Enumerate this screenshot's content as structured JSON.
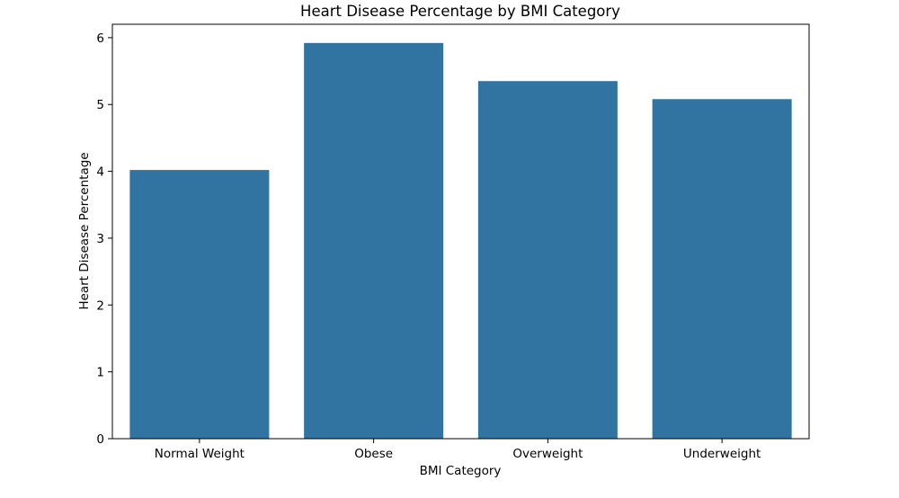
{
  "chart_data": {
    "type": "bar",
    "title": "Heart Disease Percentage by BMI Category",
    "xlabel": "BMI Category",
    "ylabel": "Heart Disease Percentage",
    "categories": [
      "Normal Weight",
      "Obese",
      "Overweight",
      "Underweight"
    ],
    "values": [
      4.02,
      5.92,
      5.35,
      5.08
    ],
    "ylim": [
      0,
      6.2
    ],
    "yticks": [
      0,
      1,
      2,
      3,
      4,
      5,
      6
    ],
    "grid": false,
    "bar_color": "#3274a1"
  }
}
